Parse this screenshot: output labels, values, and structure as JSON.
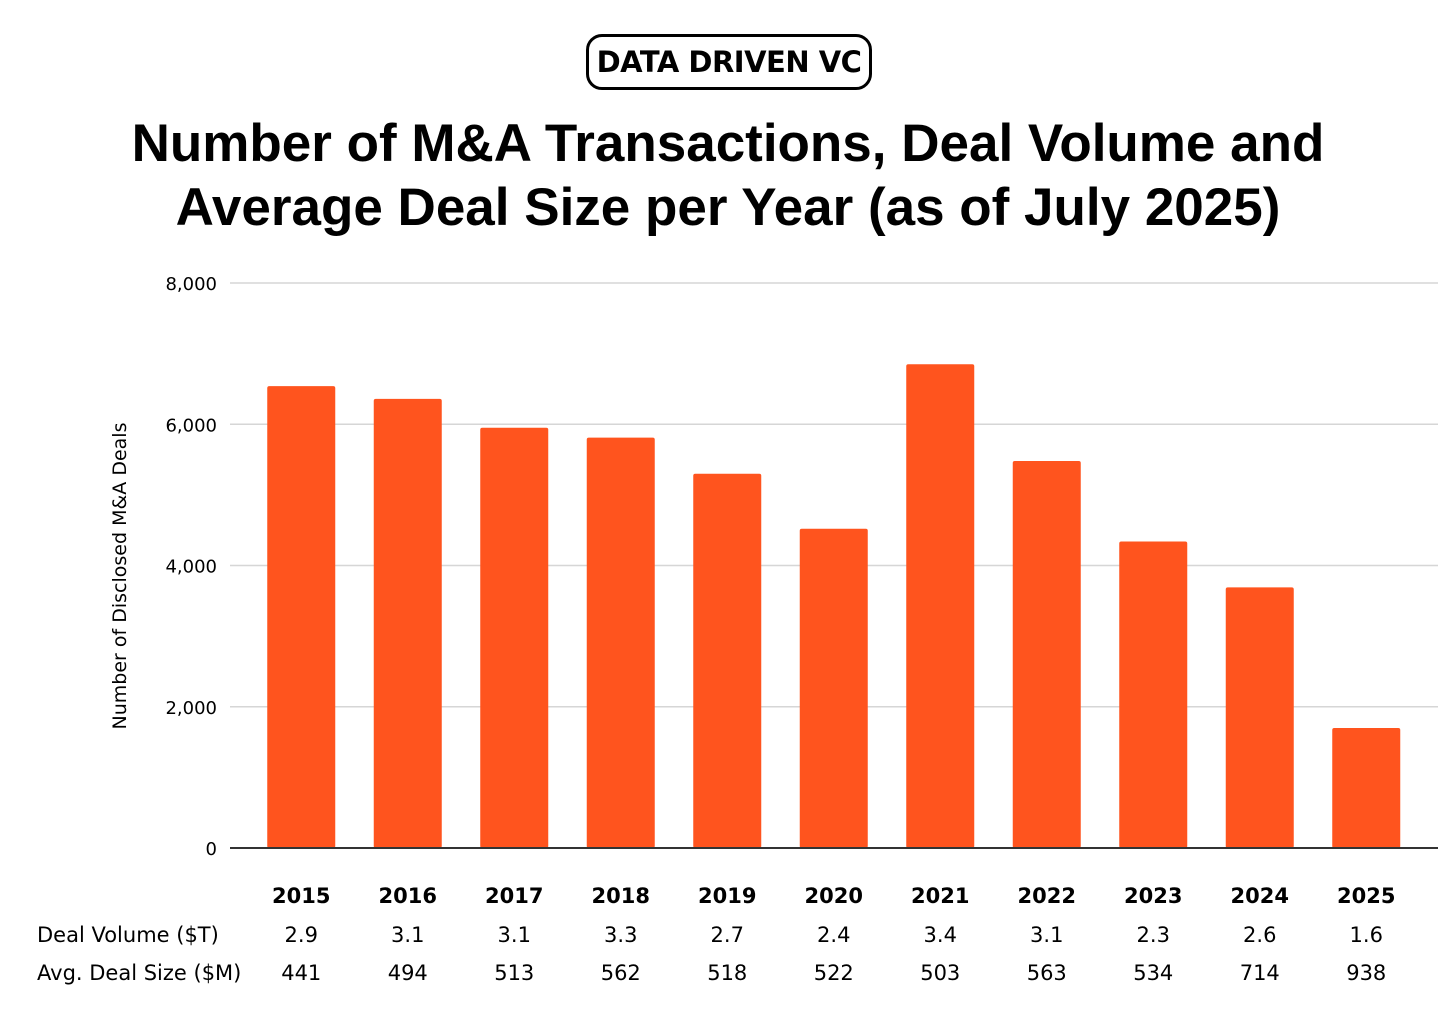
{
  "brand": {
    "name": "DATA DRIVEN VC"
  },
  "chart_data": {
    "type": "bar",
    "title_line1": "Number of M&A Transactions, Deal Volume and",
    "title_line2": "Average Deal Size per Year (as of July 2025)",
    "ylabel": "Number of Disclosed M&A Deals",
    "xlabel": "",
    "ylim": [
      0,
      8000
    ],
    "yticks": [
      "0",
      "2,000",
      "4,000",
      "6,000",
      "8,000"
    ],
    "categories": [
      "2015",
      "2016",
      "2017",
      "2018",
      "2019",
      "2020",
      "2021",
      "2022",
      "2023",
      "2024",
      "2025"
    ],
    "series": [
      {
        "values": [
          6540,
          6360,
          5950,
          5810,
          5300,
          4520,
          6850,
          5480,
          4340,
          3690,
          1700
        ]
      }
    ],
    "bar_color": "#FF541E",
    "grid": true,
    "table_rows": [
      {
        "label": "Deal Volume ($T)",
        "values": [
          "2.9",
          "3.1",
          "3.1",
          "3.3",
          "2.7",
          "2.4",
          "3.4",
          "3.1",
          "2.3",
          "2.6",
          "1.6"
        ]
      },
      {
        "label": "Avg. Deal Size ($M)",
        "values": [
          "441",
          "494",
          "513",
          "562",
          "518",
          "522",
          "503",
          "563",
          "534",
          "714",
          "938"
        ]
      }
    ]
  }
}
